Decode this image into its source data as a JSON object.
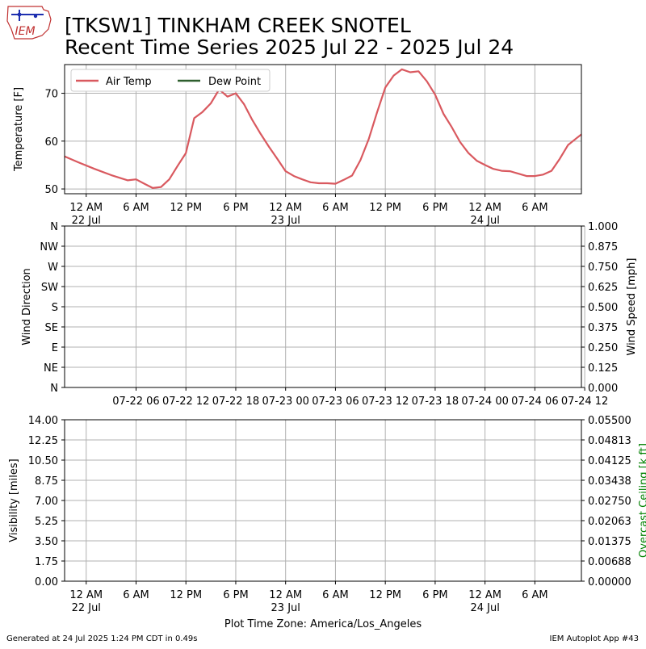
{
  "header": {
    "title_line1": "[TKSW1] TINKHAM CREEK SNOTEL",
    "title_line2": "Recent Time Series 2025 Jul 22 - 2025 Jul 24",
    "logo_text": "IEM"
  },
  "footer": {
    "generated": "Generated at 24 Jul 2025 1:24 PM CDT in 0.49s",
    "app": "IEM Autoplot App #43",
    "timezone_label": "Plot Time Zone: America/Los_Angeles"
  },
  "colors": {
    "air_temp": "#d9595f",
    "dew_point": "#2e5e2e",
    "grid": "#b0b0b0",
    "ceiling_label": "#008000"
  },
  "time_axis": {
    "hour_labels": [
      "12 AM",
      "6 AM",
      "12 PM",
      "6 PM",
      "12 AM",
      "6 AM",
      "12 PM",
      "6 PM",
      "12 AM",
      "6 AM"
    ],
    "day_labels": [
      "22 Jul",
      "",
      "",
      "",
      "23 Jul",
      "",
      "",
      "",
      "24 Jul",
      ""
    ]
  },
  "chart_data": [
    {
      "type": "line",
      "ylabel": "Temperature [F]",
      "ylim": [
        49,
        76
      ],
      "yticks": [
        50,
        60,
        70
      ],
      "grid": true,
      "legend_placement": "top-left",
      "x_unit": "hours from 2025-07-22 12 AM",
      "xlim": [
        -2.6,
        59.6
      ],
      "series": [
        {
          "name": "Air Temp",
          "color": "#d9595f",
          "x": [
            -2.6,
            -1,
            1,
            3,
            5,
            6,
            7,
            8,
            9,
            10,
            11,
            12,
            13,
            14,
            15,
            16,
            17,
            18,
            19,
            20,
            21,
            22,
            23,
            24,
            25,
            26,
            27,
            28,
            29,
            30,
            31,
            32,
            33,
            34,
            35,
            36,
            37,
            38,
            39,
            40,
            41,
            42,
            43,
            44,
            45,
            46,
            47,
            48,
            49,
            50,
            51,
            52,
            53,
            54,
            55,
            56,
            57,
            58,
            59,
            59.6
          ],
          "y": [
            56.8,
            55.6,
            54.2,
            52.9,
            51.8,
            52.0,
            51.1,
            50.2,
            50.4,
            52.0,
            54.8,
            57.5,
            64.8,
            66.1,
            67.9,
            70.8,
            69.3,
            70.0,
            67.7,
            64.4,
            61.5,
            58.8,
            56.3,
            53.7,
            52.7,
            52.0,
            51.4,
            51.2,
            51.2,
            51.1,
            51.9,
            52.8,
            56.0,
            60.4,
            66.0,
            71.2,
            73.7,
            75.0,
            74.4,
            74.6,
            72.5,
            69.7,
            65.7,
            62.9,
            59.8,
            57.5,
            55.9,
            55.0,
            54.2,
            53.8,
            53.7,
            53.2,
            52.7,
            52.7,
            53.0,
            53.8,
            56.3,
            59.2,
            60.6,
            61.4
          ]
        },
        {
          "name": "Dew Point",
          "color": "#2e5e2e",
          "x": [],
          "y": []
        }
      ]
    },
    {
      "type": "line",
      "ylabel": "Wind Direction",
      "ylabel_right": "Wind Speed [mph]",
      "yticks": [
        "N",
        "NE",
        "E",
        "SE",
        "S",
        "SW",
        "W",
        "NW",
        "N"
      ],
      "yticks_right": [
        "0.000",
        "0.125",
        "0.250",
        "0.375",
        "0.500",
        "0.625",
        "0.750",
        "0.875",
        "1.000"
      ],
      "xtick_labels": [
        "07-22 06",
        "07-22 12",
        "07-22 18",
        "07-23 00",
        "07-23 06",
        "07-23 12",
        "07-23 18",
        "07-24 00",
        "07-24 06",
        "07-24 12"
      ],
      "grid": true,
      "series": []
    },
    {
      "type": "line",
      "ylabel": "Visibility [miles]",
      "ylabel_right": "Overcast Ceiling [k ft]",
      "ylim": [
        0,
        14
      ],
      "yticks": [
        "0.00",
        "1.75",
        "3.50",
        "5.25",
        "7.00",
        "8.75",
        "10.50",
        "12.25",
        "14.00"
      ],
      "yticks_right": [
        "0.00000",
        "0.00688",
        "0.01375",
        "0.02063",
        "0.02750",
        "0.03438",
        "0.04125",
        "0.04813",
        "0.05500"
      ],
      "grid": true,
      "series": []
    }
  ]
}
